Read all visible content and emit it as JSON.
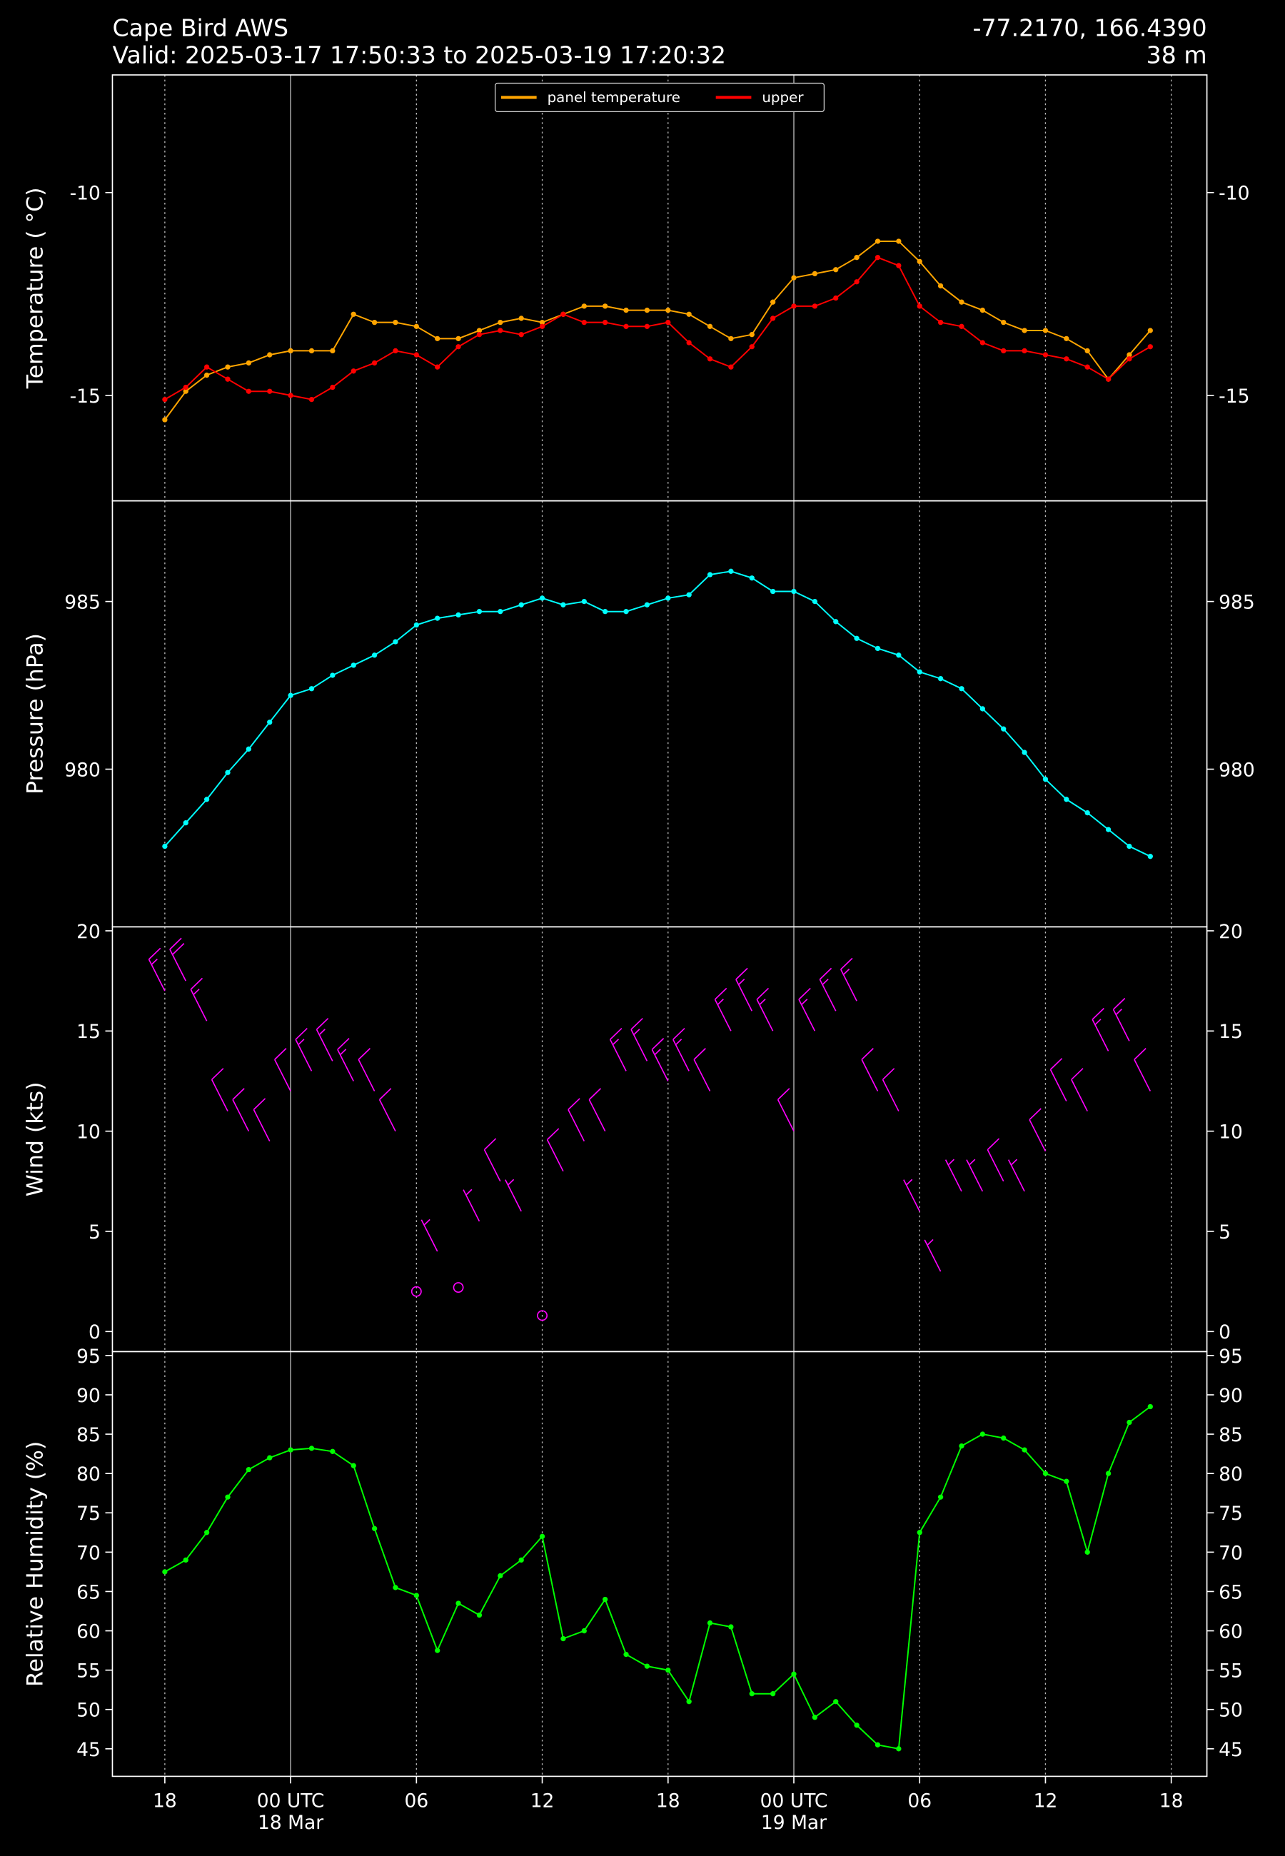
{
  "header": {
    "title": "Cape Bird AWS",
    "subtitle": "Valid: 2025-03-17 17:50:33 to 2025-03-19 17:20:32",
    "location": "-77.2170, 166.4390",
    "elevation": "38 m"
  },
  "chart_data": [
    {
      "type": "line",
      "ylabel": "Temperature ( °C)",
      "legend": "upper center",
      "x": [
        18,
        19,
        20,
        21,
        22,
        23,
        24,
        25,
        26,
        27,
        28,
        29,
        30,
        31,
        32,
        33,
        34,
        35,
        36,
        37,
        38,
        39,
        40,
        41,
        42,
        43,
        44,
        45,
        46,
        47,
        48,
        49,
        50,
        51,
        52,
        53,
        54,
        55,
        56,
        57,
        58,
        59,
        60,
        61,
        62,
        63,
        64,
        65
      ],
      "xlim": [
        15.5,
        67.7
      ],
      "ylim": [
        -17.6,
        -7.1
      ],
      "yticks": [
        -15,
        -10
      ],
      "series": [
        {
          "name": "panel temperature",
          "color": "#ffa500",
          "values": [
            -15.6,
            -14.9,
            -14.5,
            -14.3,
            -14.2,
            -14.0,
            -13.9,
            -13.9,
            -13.9,
            -13.0,
            -13.2,
            -13.2,
            -13.3,
            -13.6,
            -13.6,
            -13.4,
            -13.2,
            -13.1,
            -13.2,
            -13.0,
            -12.8,
            -12.8,
            -12.9,
            -12.9,
            -12.9,
            -13.0,
            -13.3,
            -13.6,
            -13.5,
            -12.7,
            -12.1,
            -12.0,
            -11.9,
            -11.6,
            -11.2,
            -11.2,
            -11.7,
            -12.3,
            -12.7,
            -12.9,
            -13.2,
            -13.4,
            -13.4,
            -13.6,
            -13.9,
            -14.6,
            -14.0,
            -13.4
          ]
        },
        {
          "name": "upper",
          "color": "#ff0000",
          "values": [
            -15.1,
            -14.8,
            -14.3,
            -14.6,
            -14.9,
            -14.9,
            -15.0,
            -15.1,
            -14.8,
            -14.4,
            -14.2,
            -13.9,
            -14.0,
            -14.3,
            -13.8,
            -13.5,
            -13.4,
            -13.5,
            -13.3,
            -13.0,
            -13.2,
            -13.2,
            -13.3,
            -13.3,
            -13.2,
            -13.7,
            -14.1,
            -14.3,
            -13.8,
            -13.1,
            -12.8,
            -12.8,
            -12.6,
            -12.2,
            -11.6,
            -11.8,
            -12.8,
            -13.2,
            -13.3,
            -13.7,
            -13.9,
            -13.9,
            -14.0,
            -14.1,
            -14.3,
            -14.6,
            -14.1,
            -13.8
          ]
        }
      ]
    },
    {
      "type": "line",
      "ylabel": "Pressure (hPa)",
      "x": [
        18,
        19,
        20,
        21,
        22,
        23,
        24,
        25,
        26,
        27,
        28,
        29,
        30,
        31,
        32,
        33,
        34,
        35,
        36,
        37,
        38,
        39,
        40,
        41,
        42,
        43,
        44,
        45,
        46,
        47,
        48,
        49,
        50,
        51,
        52,
        53,
        54,
        55,
        56,
        57,
        58,
        59,
        60,
        61,
        62,
        63,
        64,
        65
      ],
      "xlim": [
        15.5,
        67.7
      ],
      "ylim": [
        975.3,
        988.0
      ],
      "yticks": [
        980,
        985
      ],
      "series": [
        {
          "color": "#00ffff",
          "values": [
            977.7,
            978.4,
            979.1,
            979.9,
            980.6,
            981.4,
            982.2,
            982.4,
            982.8,
            983.1,
            983.4,
            983.8,
            984.3,
            984.5,
            984.6,
            984.7,
            984.7,
            984.9,
            985.1,
            984.9,
            985.0,
            984.7,
            984.7,
            984.9,
            985.1,
            985.2,
            985.8,
            985.9,
            985.7,
            985.3,
            985.3,
            985.0,
            984.4,
            983.9,
            983.6,
            983.4,
            982.9,
            982.7,
            982.4,
            981.8,
            981.2,
            980.5,
            979.7,
            979.1,
            978.7,
            978.2,
            977.7,
            977.4
          ]
        }
      ]
    },
    {
      "type": "barbs",
      "ylabel": "Wind (kts)",
      "x": [
        18,
        19,
        20,
        21,
        22,
        23,
        24,
        25,
        26,
        27,
        28,
        29,
        30,
        31,
        32,
        33,
        34,
        35,
        36,
        37,
        38,
        39,
        40,
        41,
        42,
        43,
        44,
        45,
        46,
        47,
        48,
        49,
        50,
        51,
        52,
        53,
        54,
        55,
        56,
        57,
        58,
        59,
        60,
        61,
        62,
        63,
        64,
        65
      ],
      "xlim": [
        15.5,
        67.7
      ],
      "ylim": [
        -1.0,
        20.2
      ],
      "yticks": [
        0,
        5,
        10,
        15,
        20
      ],
      "series": [
        {
          "color": "#ff00ff",
          "values": [
            17,
            17.5,
            15.5,
            11,
            10,
            9.5,
            12,
            13,
            13.5,
            12.5,
            12,
            10,
            2,
            4,
            2.2,
            5.5,
            7.5,
            6,
            0.8,
            8,
            9.5,
            10,
            13,
            13.5,
            12.5,
            13,
            12,
            15,
            16,
            15,
            10,
            15,
            16,
            16.5,
            12,
            11,
            6,
            3,
            7,
            7,
            7.5,
            7,
            9,
            11.5,
            11,
            14,
            14.5,
            12
          ]
        }
      ]
    },
    {
      "type": "line",
      "ylabel": "Relative Humidity (%)",
      "x": [
        18,
        19,
        20,
        21,
        22,
        23,
        24,
        25,
        26,
        27,
        28,
        29,
        30,
        31,
        32,
        33,
        34,
        35,
        36,
        37,
        38,
        39,
        40,
        41,
        42,
        43,
        44,
        45,
        46,
        47,
        48,
        49,
        50,
        51,
        52,
        53,
        54,
        55,
        56,
        57,
        58,
        59,
        60,
        61,
        62,
        63,
        64,
        65
      ],
      "xlim": [
        15.5,
        67.7
      ],
      "ylim": [
        41.5,
        95.5
      ],
      "yticks": [
        45,
        50,
        55,
        60,
        65,
        70,
        75,
        80,
        85,
        90,
        95
      ],
      "xticks": [
        {
          "value": 18,
          "label": "18"
        },
        {
          "value": 24,
          "label": "00 UTC\n18 Mar"
        },
        {
          "value": 30,
          "label": "06"
        },
        {
          "value": 36,
          "label": "12"
        },
        {
          "value": 42,
          "label": "18"
        },
        {
          "value": 48,
          "label": "00 UTC\n19 Mar"
        },
        {
          "value": 54,
          "label": "06"
        },
        {
          "value": 60,
          "label": "12"
        },
        {
          "value": 66,
          "label": "18"
        }
      ],
      "grid": true,
      "series": [
        {
          "color": "#00ff00",
          "values": [
            67.5,
            69,
            72.5,
            77,
            80.5,
            82,
            83,
            83.2,
            82.8,
            81,
            73,
            65.5,
            64.5,
            57.5,
            63.5,
            62,
            67,
            69,
            72,
            59,
            60,
            64,
            57,
            55.5,
            55,
            51,
            61,
            60.5,
            52,
            52,
            54.5,
            49,
            51,
            48,
            45.5,
            45,
            72.5,
            77,
            83.5,
            85,
            84.5,
            83,
            80,
            79,
            70,
            80,
            86.5,
            88.5
          ]
        }
      ]
    }
  ]
}
